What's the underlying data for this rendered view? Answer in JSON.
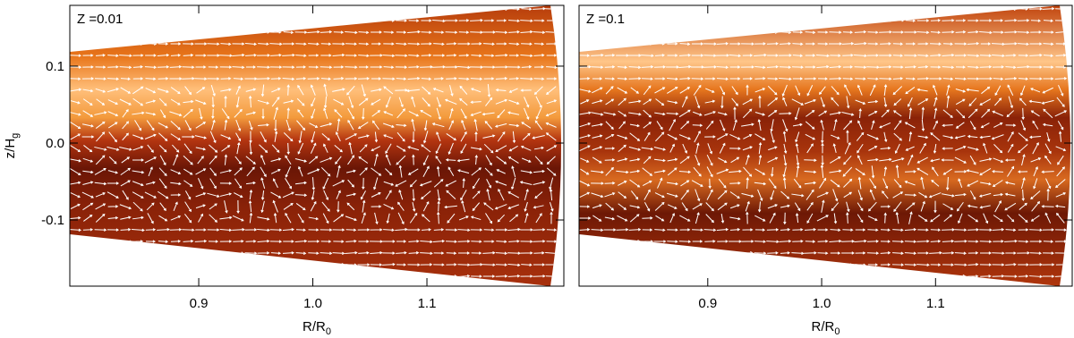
{
  "chart_data": [
    {
      "type": "heatmap",
      "title": "Z =0.01",
      "xlabel": {
        "main": "R/R",
        "sub": "0"
      },
      "ylabel": {
        "main": "z/H",
        "sub": "g"
      },
      "xlim": [
        0.787,
        1.22
      ],
      "xticks": [
        0.9,
        {
          "value": 1.0,
          "label": "1.0"
        },
        1.1
      ],
      "ylim": [
        -0.186,
        0.179
      ],
      "yticks": [
        0.1,
        {
          "value": 0.0,
          "label": "0.0"
        },
        -0.1
      ]
    },
    {
      "type": "heatmap",
      "title": "Z =0.1",
      "xlabel": {
        "main": "R/R",
        "sub": "0"
      },
      "xlim": [
        0.787,
        1.22
      ],
      "xticks": [
        0.9,
        {
          "value": 1.0,
          "label": "1.0"
        },
        1.1
      ],
      "ylim": [
        -0.186,
        0.179
      ],
      "yticks": [
        0.1,
        {
          "value": 0.0,
          "label": "0.0"
        },
        -0.1
      ]
    }
  ]
}
